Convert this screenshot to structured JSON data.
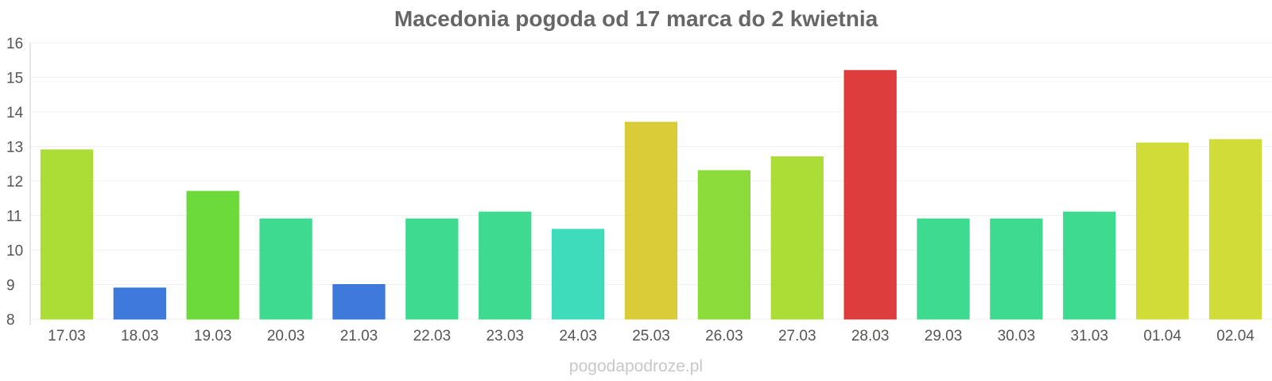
{
  "chart_data": {
    "type": "bar",
    "title": "Macedonia pogoda od 17 marca do 2 kwietnia",
    "categories": [
      "17.03",
      "18.03",
      "19.03",
      "20.03",
      "21.03",
      "22.03",
      "23.03",
      "24.03",
      "25.03",
      "26.03",
      "27.03",
      "28.03",
      "29.03",
      "30.03",
      "31.03",
      "01.04",
      "02.04"
    ],
    "values": [
      12.9,
      8.9,
      11.7,
      10.9,
      9.0,
      10.9,
      11.1,
      10.6,
      13.7,
      12.3,
      12.7,
      15.2,
      10.9,
      10.9,
      11.1,
      13.1,
      13.2
    ],
    "colors": [
      "#a8dc2e",
      "#3575db",
      "#66d833",
      "#36d98a",
      "#3575db",
      "#36d98a",
      "#36d98a",
      "#36dbb8",
      "#d8c930",
      "#85dc30",
      "#a8dc2e",
      "#dc3535",
      "#36d98a",
      "#36d98a",
      "#36d98a",
      "#cedc30",
      "#cedc30"
    ],
    "ylim": [
      8,
      16
    ],
    "yticks": [
      "8",
      "9",
      "10",
      "11",
      "12",
      "13",
      "14",
      "15",
      "16"
    ],
    "xlabel": "",
    "ylabel": "",
    "grid": true,
    "legend": "none"
  },
  "watermark": "pogodapodroze.pl"
}
